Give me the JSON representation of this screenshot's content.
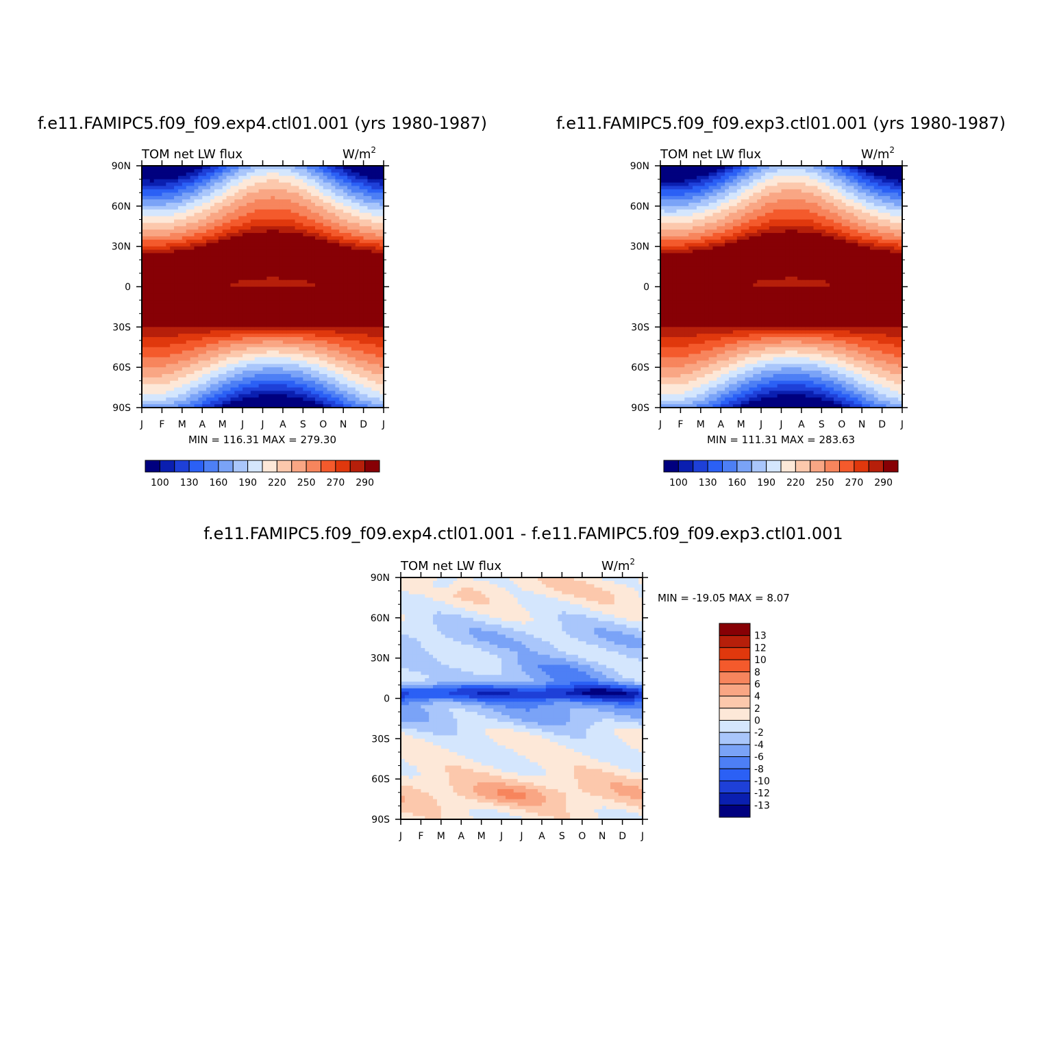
{
  "chart_data": [
    {
      "type": "heatmap",
      "title": "f.e11.FAMIPC5.f09_f09.exp4.ctl01.001 (yrs 1980-1987)",
      "left_label": "TOM net LW flux",
      "right_label": "W/m",
      "right_label_sup": "2",
      "x_ticks": [
        "J",
        "F",
        "M",
        "A",
        "M",
        "J",
        "J",
        "A",
        "S",
        "O",
        "N",
        "D",
        "J"
      ],
      "y_ticks": [
        "90N",
        "60N",
        "30N",
        "0",
        "30S",
        "60S",
        "90S"
      ],
      "stats": "MIN = 116.31 MAX = 279.30",
      "colorbar_labels": [
        "100",
        "130",
        "160",
        "190",
        "220",
        "250",
        "270",
        "290"
      ],
      "levels": [
        100,
        110,
        120,
        130,
        140,
        150,
        160,
        170,
        180,
        190,
        200,
        210,
        220,
        230,
        240,
        250,
        260,
        270,
        280,
        290
      ],
      "colors": [
        "#00007f",
        "#0a1fb0",
        "#1e40d8",
        "#2b60f5",
        "#4d7ff5",
        "#7aa3f7",
        "#a9c6fb",
        "#d4e6fd",
        "#fde8d8",
        "#fcc8ac",
        "#f9a684",
        "#f7855d",
        "#f45a2c",
        "#e0380d",
        "#b61f0a",
        "#870005"
      ]
    },
    {
      "type": "heatmap",
      "title": "f.e11.FAMIPC5.f09_f09.exp3.ctl01.001 (yrs 1980-1987)",
      "left_label": "TOM net LW flux",
      "right_label": "W/m",
      "right_label_sup": "2",
      "x_ticks": [
        "J",
        "F",
        "M",
        "A",
        "M",
        "J",
        "J",
        "A",
        "S",
        "O",
        "N",
        "D",
        "J"
      ],
      "y_ticks": [
        "90N",
        "60N",
        "30N",
        "0",
        "30S",
        "60S",
        "90S"
      ],
      "stats": "MIN = 111.31 MAX = 283.63",
      "colorbar_labels": [
        "100",
        "130",
        "160",
        "190",
        "220",
        "250",
        "270",
        "290"
      ]
    },
    {
      "type": "heatmap",
      "title": "f.e11.FAMIPC5.f09_f09.exp4.ctl01.001 - f.e11.FAMIPC5.f09_f09.exp3.ctl01.001",
      "left_label": "TOM net LW flux",
      "right_label": "W/m",
      "right_label_sup": "2",
      "x_ticks": [
        "J",
        "F",
        "M",
        "A",
        "M",
        "J",
        "J",
        "A",
        "S",
        "O",
        "N",
        "D",
        "J"
      ],
      "y_ticks": [
        "90N",
        "60N",
        "30N",
        "0",
        "30S",
        "60S",
        "90S"
      ],
      "stats": "MIN = -19.05 MAX =    8.07",
      "colorbar_labels": [
        "13",
        "12",
        "10",
        "8",
        "6",
        "4",
        "2",
        "0",
        "-2",
        "-4",
        "-6",
        "-8",
        "-10",
        "-12",
        "-13"
      ],
      "colors": [
        "#870005",
        "#b61f0a",
        "#e0380d",
        "#f45a2c",
        "#f7855d",
        "#f9a684",
        "#fcc8ac",
        "#fde8d8",
        "#d4e6fd",
        "#a9c6fb",
        "#7aa3f7",
        "#4d7ff5",
        "#2b60f5",
        "#1e40d8",
        "#0a1fb0",
        "#00007f"
      ]
    }
  ]
}
